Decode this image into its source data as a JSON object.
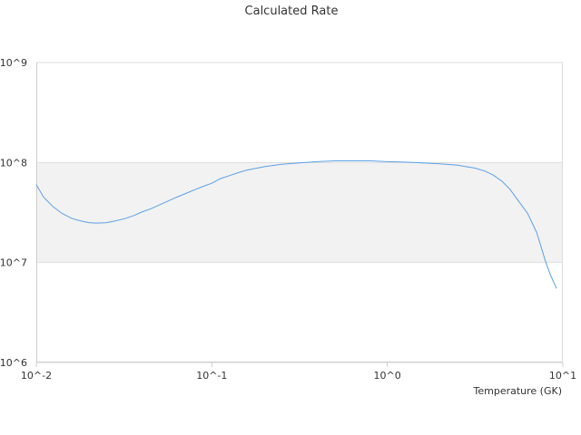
{
  "chart_data": {
    "type": "line",
    "title": "Calculated Rate",
    "xlabel": "Temperature (GK)",
    "ylabel": "",
    "x_scale": "log",
    "y_scale": "log",
    "xlim": [
      0.01,
      10
    ],
    "ylim": [
      1000000,
      1000000000
    ],
    "x_tick_labels": [
      "10^-2",
      "10^-1",
      "10^0",
      "10^1"
    ],
    "y_tick_labels": [
      "10^6",
      "10^7",
      "10^8",
      "10^9"
    ],
    "line_color": "#5aa0e6",
    "band_color": "#f2f2f2",
    "series": [
      {
        "x": [
          0.01,
          0.011,
          0.0125,
          0.014,
          0.016,
          0.018,
          0.02,
          0.022,
          0.025,
          0.028,
          0.032,
          0.036,
          0.04,
          0.045,
          0.05,
          0.056,
          0.063,
          0.071,
          0.08,
          0.09,
          0.1,
          0.112,
          0.126,
          0.141,
          0.158,
          0.2,
          0.25,
          0.316,
          0.4,
          0.5,
          0.63,
          0.8,
          1.0,
          1.26,
          1.58,
          2.0,
          2.5,
          3.16,
          3.6,
          4.0,
          4.5,
          5.0,
          5.6,
          6.3,
          7.1,
          8.0,
          8.5,
          9.2
        ],
        "y": [
          60000000,
          45000000,
          36000000,
          31000000,
          27500000,
          26000000,
          25000000,
          24800000,
          25000000,
          26000000,
          27500000,
          29500000,
          32000000,
          34500000,
          37500000,
          41000000,
          45000000,
          49000000,
          53500000,
          58000000,
          62000000,
          69000000,
          74000000,
          79000000,
          84000000,
          91000000,
          96000000,
          99000000,
          102000000,
          104000000,
          104000000,
          104000000,
          102000000,
          101000000,
          99000000,
          97000000,
          94000000,
          88000000,
          82000000,
          75000000,
          65000000,
          54000000,
          41000000,
          31000000,
          20000000,
          10000000,
          7500000,
          5500000
        ]
      }
    ]
  }
}
